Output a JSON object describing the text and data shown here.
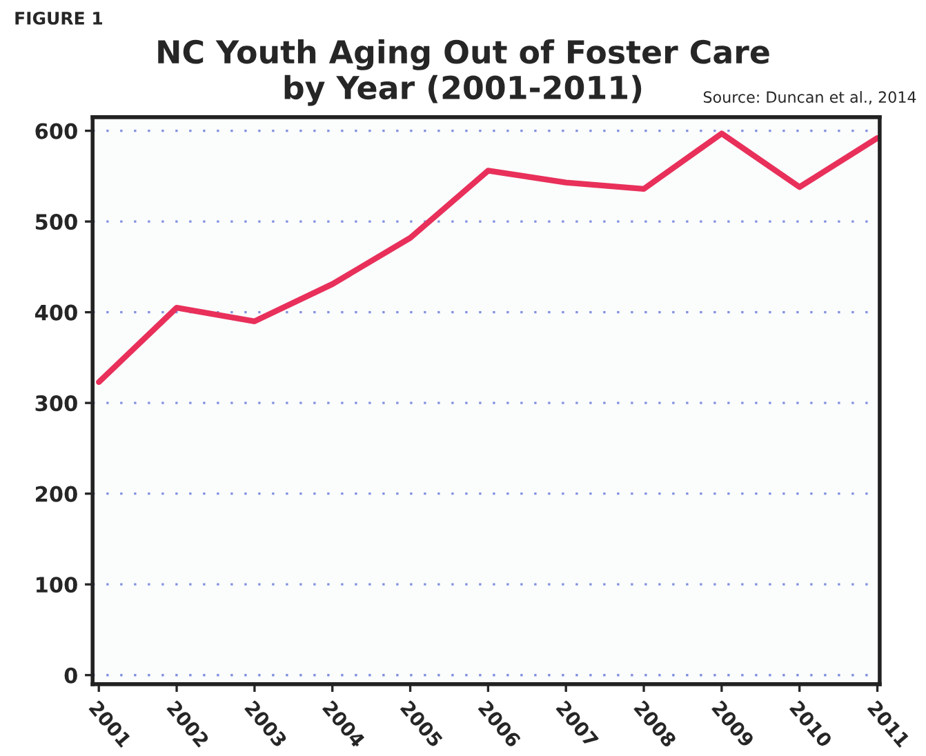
{
  "chart_data": {
    "type": "line",
    "title": "NC Youth Aging Out of Foster Care\nby Year (2001-2011)",
    "annotations": [
      "FIGURE 1",
      "Source: Duncan et al., 2014"
    ],
    "x": [
      2001,
      2002,
      2003,
      2004,
      2005,
      2006,
      2007,
      2008,
      2009,
      2010,
      2011
    ],
    "series": [
      {
        "color": "#e8305a",
        "values": [
          323,
          405,
          390,
          431,
          482,
          556,
          543,
          536,
          597,
          538,
          592
        ]
      }
    ],
    "xlim": [
      2000.92,
      2011.03
    ],
    "xticks": [
      2001,
      2002,
      2003,
      2004,
      2005,
      2006,
      2007,
      2008,
      2009,
      2010,
      2011
    ],
    "ylim": [
      -10,
      615
    ],
    "yticks": [
      0,
      100,
      200,
      300,
      400,
      500,
      600
    ],
    "grid": "y",
    "legend": false,
    "marker": "none",
    "line_style": "solid"
  }
}
